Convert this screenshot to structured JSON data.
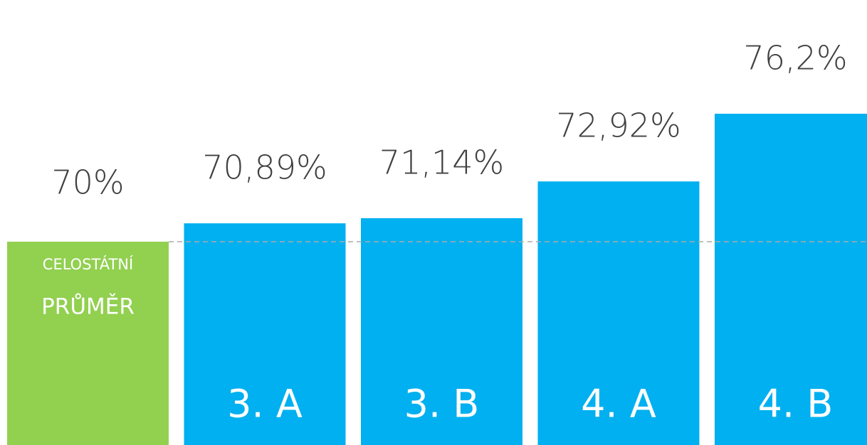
{
  "chart_data": {
    "type": "bar",
    "reference": {
      "label_lines": [
        "CELOSTÁTNÍ",
        "PRŮMĚR"
      ],
      "value": 70,
      "value_label": "70%",
      "color": "#92d050"
    },
    "categories": [
      "3. A",
      "3. B",
      "4. A",
      "4. B"
    ],
    "values": [
      70.89,
      71.14,
      72.92,
      76.2
    ],
    "value_labels": [
      "70,89%",
      "71,14%",
      "72,92%",
      "76,2%"
    ],
    "color": "#00b0f0"
  }
}
